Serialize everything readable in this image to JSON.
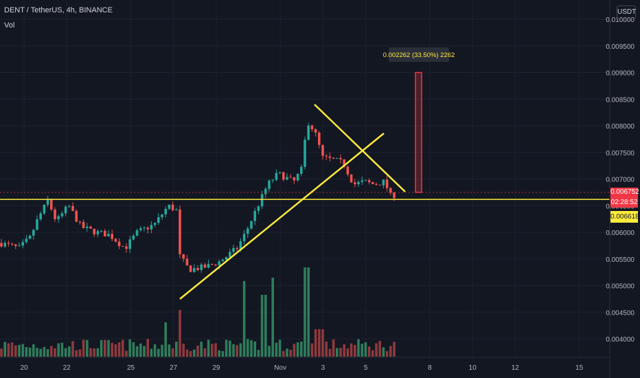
{
  "header": {
    "title": "DENT / TetherUS, 4h, BINANCE",
    "indicator": "Vol"
  },
  "price_axis": {
    "currency": "USDT",
    "ticks": [
      "0.010000",
      "0.009500",
      "0.009000",
      "0.008500",
      "0.008000",
      "0.007500",
      "0.007000",
      "0.006500",
      "0.006000",
      "0.005500",
      "0.005000",
      "0.004500",
      "0.004000"
    ],
    "current_price": "0.006752",
    "countdown": "02:28:52",
    "line_price": "0.006618"
  },
  "time_axis": {
    "ticks": [
      "20",
      "22",
      "25",
      "27",
      "29",
      "Nov",
      "3",
      "5",
      "8",
      "10",
      "12",
      "15"
    ]
  },
  "measure_label": "0.002262 (33.50%) 2262",
  "colors": {
    "up": "#26a69a",
    "down": "#ef5350",
    "up_dim": "#2e7d5b",
    "down_dim": "#8e3a3c",
    "trendline": "#ffeb3b",
    "background": "#131722",
    "price_tag": "#f23645",
    "line_tag": "#ffeb3b"
  },
  "chart_data": {
    "type": "candlestick",
    "symbol": "DENT / TetherUS",
    "interval": "4h",
    "exchange": "BINANCE",
    "y_range": [
      0.0038,
      0.01
    ],
    "ohlc_approx": [
      {
        "t": "Oct 19",
        "o": 0.00575,
        "h": 0.00592,
        "l": 0.00568,
        "c": 0.0058
      },
      {
        "t": "Oct 20",
        "o": 0.0058,
        "h": 0.00625,
        "l": 0.00575,
        "c": 0.00615
      },
      {
        "t": "Oct 21",
        "o": 0.00615,
        "h": 0.00668,
        "l": 0.00605,
        "c": 0.0063
      },
      {
        "t": "Oct 22",
        "o": 0.0063,
        "h": 0.00645,
        "l": 0.00608,
        "c": 0.00612
      },
      {
        "t": "Oct 23",
        "o": 0.00612,
        "h": 0.00622,
        "l": 0.00596,
        "c": 0.00604
      },
      {
        "t": "Oct 24",
        "o": 0.00604,
        "h": 0.0061,
        "l": 0.00575,
        "c": 0.0059
      },
      {
        "t": "Oct 25",
        "o": 0.0059,
        "h": 0.00612,
        "l": 0.0058,
        "c": 0.00605
      },
      {
        "t": "Oct 26",
        "o": 0.00605,
        "h": 0.00662,
        "l": 0.006,
        "c": 0.00645
      },
      {
        "t": "Oct 27",
        "o": 0.00645,
        "h": 0.0065,
        "l": 0.00525,
        "c": 0.0054
      },
      {
        "t": "Oct 28",
        "o": 0.0054,
        "h": 0.0056,
        "l": 0.00522,
        "c": 0.00548
      },
      {
        "t": "Oct 29",
        "o": 0.00548,
        "h": 0.00575,
        "l": 0.00535,
        "c": 0.00565
      },
      {
        "t": "Oct 30",
        "o": 0.00565,
        "h": 0.0064,
        "l": 0.0056,
        "c": 0.0063
      },
      {
        "t": "Oct 31",
        "o": 0.0063,
        "h": 0.00705,
        "l": 0.0062,
        "c": 0.0069
      },
      {
        "t": "Nov 1",
        "o": 0.0069,
        "h": 0.0071,
        "l": 0.0066,
        "c": 0.007
      },
      {
        "t": "Nov 2",
        "o": 0.007,
        "h": 0.0084,
        "l": 0.0069,
        "c": 0.008
      },
      {
        "t": "Nov 3",
        "o": 0.008,
        "h": 0.00812,
        "l": 0.00718,
        "c": 0.00735
      },
      {
        "t": "Nov 4",
        "o": 0.00735,
        "h": 0.00755,
        "l": 0.007,
        "c": 0.00712
      },
      {
        "t": "Nov 5",
        "o": 0.00712,
        "h": 0.00728,
        "l": 0.0068,
        "c": 0.0069
      },
      {
        "t": "Nov 6",
        "o": 0.0069,
        "h": 0.00712,
        "l": 0.00655,
        "c": 0.00675
      }
    ],
    "annotations": [
      {
        "type": "horizontal_line",
        "price": 0.006618
      },
      {
        "type": "trendline",
        "from": {
          "t": "Oct 27",
          "p": 0.00475
        },
        "to": {
          "t": "Nov 8",
          "p": 0.00785
        }
      },
      {
        "type": "trendline",
        "from": {
          "t": "Nov 2",
          "p": 0.0084
        },
        "to": {
          "t": "Nov 7",
          "p": 0.00675
        }
      },
      {
        "type": "measure",
        "from_price": 0.00675,
        "to_price": 0.009,
        "label": "0.002262 (33.50%) 2262"
      }
    ]
  }
}
